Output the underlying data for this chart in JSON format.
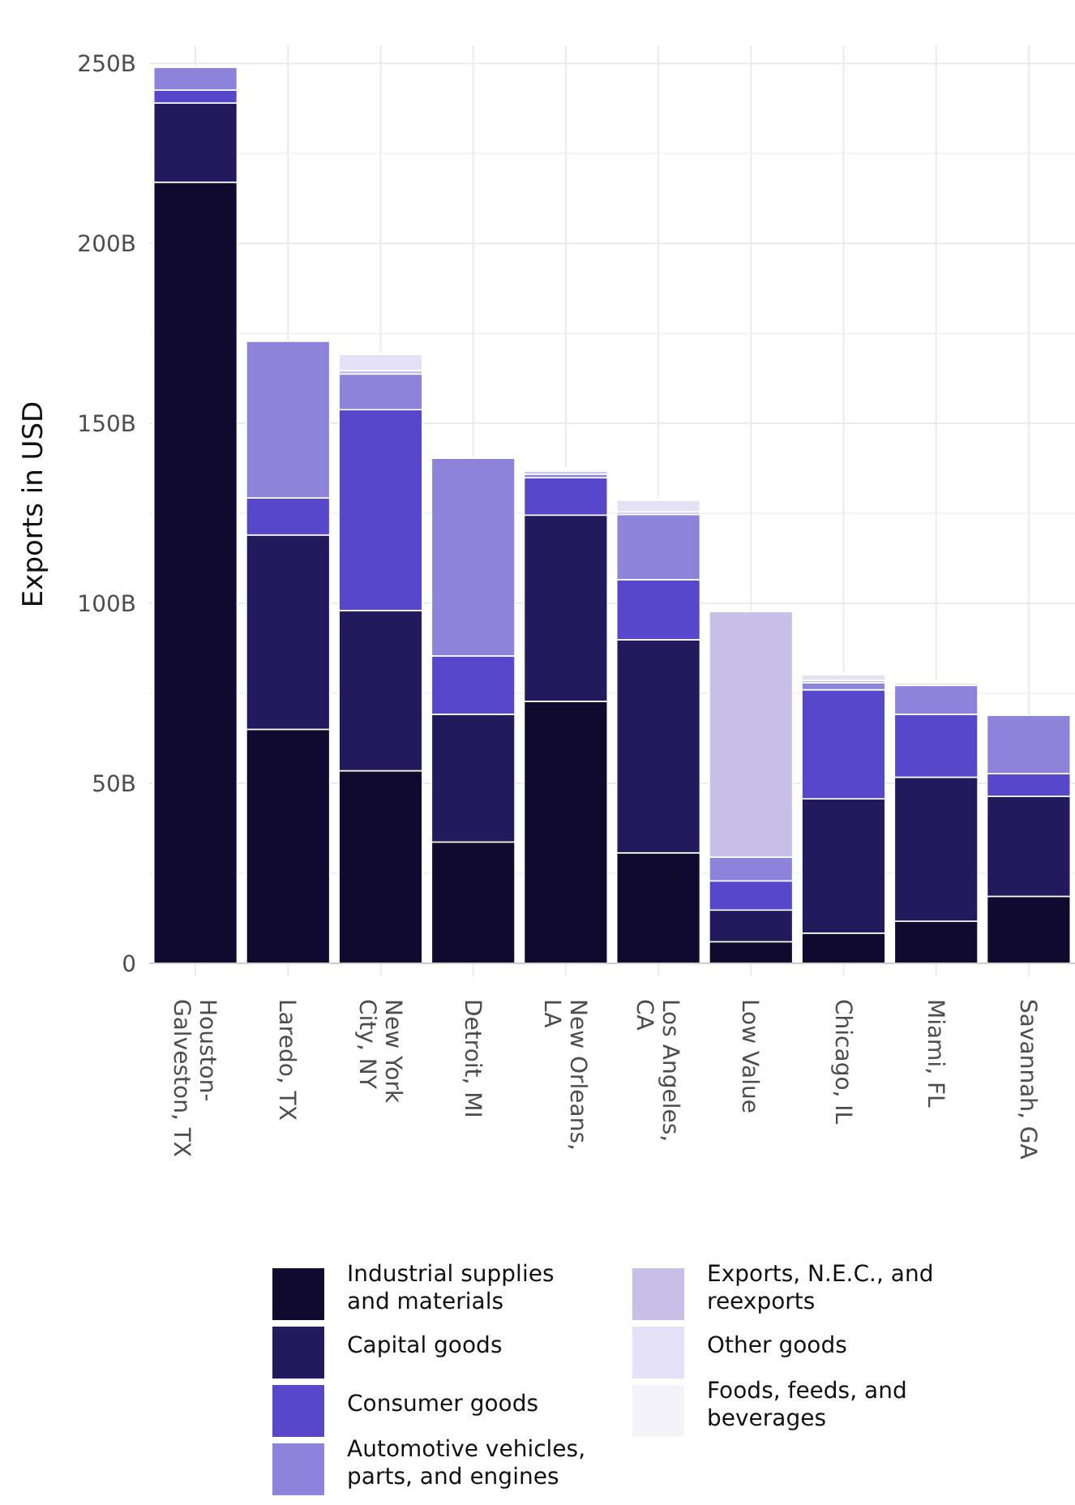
{
  "chart_data": {
    "type": "bar",
    "stacked": true,
    "ylabel": "Exports in USD",
    "categories": [
      "Houston-Galveston, TX",
      "Laredo, TX",
      "New York City, NY",
      "Detroit, MI",
      "New Orleans, LA",
      "Los Angeles, CA",
      "Low Value",
      "Chicago, IL",
      "Miami, FL",
      "Savannah, GA"
    ],
    "series": [
      {
        "name": "Industrial supplies and materials",
        "color": "#100a2e",
        "values": [
          217,
          65,
          53.5,
          33.7,
          72.8,
          30.7,
          6,
          8.4,
          11.7,
          18.6
        ]
      },
      {
        "name": "Capital goods",
        "color": "#231a5e",
        "values": [
          22,
          54,
          44.5,
          35.5,
          51.7,
          59.2,
          8.8,
          37.3,
          40,
          27.8
        ]
      },
      {
        "name": "Consumer goods",
        "color": "#5647cb",
        "values": [
          3.6,
          10.3,
          55.8,
          16.2,
          10.4,
          16.7,
          8.1,
          30.3,
          17.5,
          6.3
        ]
      },
      {
        "name": "Automotive vehicles, parts, and engines",
        "color": "#8d83da",
        "values": [
          6.3,
          43.5,
          9.9,
          54.9,
          1,
          18.1,
          6.6,
          1.9,
          8,
          16.2
        ]
      },
      {
        "name": "Exports, N.E.C., and reexports",
        "color": "#c7bfe8",
        "values": [
          null,
          null,
          1,
          null,
          0.8,
          0.7,
          68.2,
          0.7,
          null,
          null
        ]
      },
      {
        "name": "Other goods",
        "color": "#e4e0f5",
        "values": [
          null,
          null,
          4.5,
          null,
          0.5,
          3.3,
          null,
          1.6,
          0.8,
          null
        ]
      },
      {
        "name": "Foods, feeds, and beverages",
        "color": "#f4f3fa",
        "values": [
          null,
          null,
          0.5,
          null,
          0.4,
          0.3,
          null,
          0.3,
          0.4,
          null
        ]
      }
    ],
    "ylim": [
      0,
      255
    ],
    "yticks": [
      {
        "value": 0,
        "label": "0"
      },
      {
        "value": 50,
        "label": "50B"
      },
      {
        "value": 100,
        "label": "100B"
      },
      {
        "value": 150,
        "label": "150B"
      },
      {
        "value": 200,
        "label": "200B"
      },
      {
        "value": 250,
        "label": "250B"
      }
    ],
    "grid": true,
    "legend": "bottom"
  }
}
